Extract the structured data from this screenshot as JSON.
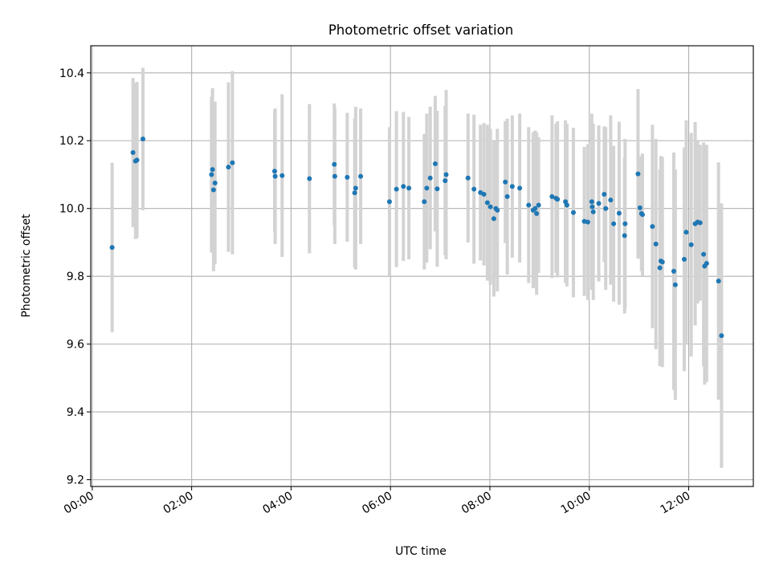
{
  "chart_data": {
    "type": "scatter",
    "title": "Photometric offset variation",
    "xlabel": "UTC time",
    "ylabel": "Photometric offset",
    "xlim": [
      -0.03,
      13.3
    ],
    "ylim": [
      9.18,
      10.48
    ],
    "x_ticks": [
      {
        "value": 0,
        "label": "00:00"
      },
      {
        "value": 2,
        "label": "02:00"
      },
      {
        "value": 4,
        "label": "04:00"
      },
      {
        "value": 6,
        "label": "06:00"
      },
      {
        "value": 8,
        "label": "08:00"
      },
      {
        "value": 10,
        "label": "10:00"
      },
      {
        "value": 12,
        "label": "12:00"
      }
    ],
    "y_ticks": [
      {
        "value": 9.2,
        "label": "9.2"
      },
      {
        "value": 9.4,
        "label": "9.4"
      },
      {
        "value": 9.6,
        "label": "9.6"
      },
      {
        "value": 9.8,
        "label": "9.8"
      },
      {
        "value": 10.0,
        "label": "10.0"
      },
      {
        "value": 10.2,
        "label": "10.2"
      },
      {
        "value": 10.4,
        "label": "10.4"
      }
    ],
    "grid": true,
    "marker_color": "#1f77b4",
    "errorbar_color": "#d3d3d3",
    "series": [
      {
        "x": [
          0.4,
          0.82,
          0.87,
          0.9,
          1.02,
          2.4,
          2.42,
          2.44,
          2.47,
          2.74,
          2.82,
          3.67,
          3.68,
          3.82,
          4.37,
          4.87,
          4.88,
          5.13,
          5.28,
          5.3,
          5.4,
          5.98,
          6.12,
          6.26,
          6.37,
          6.68,
          6.73,
          6.8,
          6.9,
          6.94,
          7.1,
          7.12,
          7.56,
          7.68,
          7.81,
          7.88,
          7.95,
          8.01,
          8.08,
          8.12,
          8.15,
          8.31,
          8.35,
          8.45,
          8.6,
          8.78,
          8.87,
          8.91,
          8.94,
          8.98,
          9.25,
          9.33,
          9.36,
          9.52,
          9.55,
          9.68,
          9.9,
          9.97,
          10.05,
          10.06,
          10.08,
          10.19,
          10.3,
          10.33,
          10.43,
          10.49,
          10.6,
          10.71,
          10.72,
          10.98,
          11.02,
          11.05,
          11.07,
          11.27,
          11.34,
          11.42,
          11.44,
          11.47,
          11.7,
          11.73,
          11.91,
          11.95,
          12.05,
          12.13,
          12.18,
          12.23,
          12.3,
          12.32,
          12.36,
          12.6,
          12.66
        ],
        "y": [
          9.885,
          10.165,
          10.14,
          10.143,
          10.205,
          10.1,
          10.115,
          10.055,
          10.075,
          10.122,
          10.135,
          10.11,
          10.095,
          10.097,
          10.088,
          10.13,
          10.095,
          10.092,
          10.046,
          10.06,
          10.095,
          10.02,
          10.057,
          10.065,
          10.06,
          10.02,
          10.06,
          10.09,
          10.132,
          10.058,
          10.082,
          10.1,
          10.09,
          10.057,
          10.047,
          10.042,
          10.017,
          10.005,
          9.97,
          10.0,
          9.995,
          10.078,
          10.035,
          10.065,
          10.06,
          10.01,
          9.995,
          10.0,
          9.985,
          10.01,
          10.035,
          10.03,
          10.027,
          10.02,
          10.01,
          9.988,
          9.962,
          9.96,
          10.02,
          10.005,
          9.99,
          10.015,
          10.042,
          10.0,
          10.025,
          9.955,
          9.986,
          9.92,
          9.955,
          10.102,
          10.002,
          9.985,
          9.982,
          9.947,
          9.895,
          9.825,
          9.845,
          9.842,
          9.815,
          9.775,
          9.85,
          9.93,
          9.893,
          9.955,
          9.96,
          9.958,
          9.865,
          9.83,
          9.838,
          9.786,
          9.625
        ],
        "yerr": [
          0.25,
          0.22,
          0.23,
          0.23,
          0.21,
          0.23,
          0.24,
          0.24,
          0.24,
          0.25,
          0.27,
          0.18,
          0.2,
          0.24,
          0.22,
          0.18,
          0.2,
          0.19,
          0.22,
          0.24,
          0.2,
          0.22,
          0.23,
          0.22,
          0.21,
          0.2,
          0.22,
          0.21,
          0.2,
          0.23,
          0.22,
          0.25,
          0.19,
          0.22,
          0.2,
          0.21,
          0.23,
          0.23,
          0.23,
          0.2,
          0.24,
          0.18,
          0.23,
          0.21,
          0.22,
          0.23,
          0.23,
          0.23,
          0.24,
          0.2,
          0.24,
          0.22,
          0.23,
          0.24,
          0.24,
          0.25,
          0.22,
          0.23,
          0.26,
          0.23,
          0.26,
          0.23,
          0.2,
          0.24,
          0.25,
          0.23,
          0.27,
          0.23,
          0.25,
          0.25,
          0.15,
          0.17,
          0.18,
          0.3,
          0.31,
          0.29,
          0.31,
          0.31,
          0.35,
          0.34,
          0.33,
          0.33,
          0.33,
          0.3,
          0.24,
          0.23,
          0.33,
          0.35,
          0.35,
          0.35,
          0.39
        ]
      }
    ]
  }
}
